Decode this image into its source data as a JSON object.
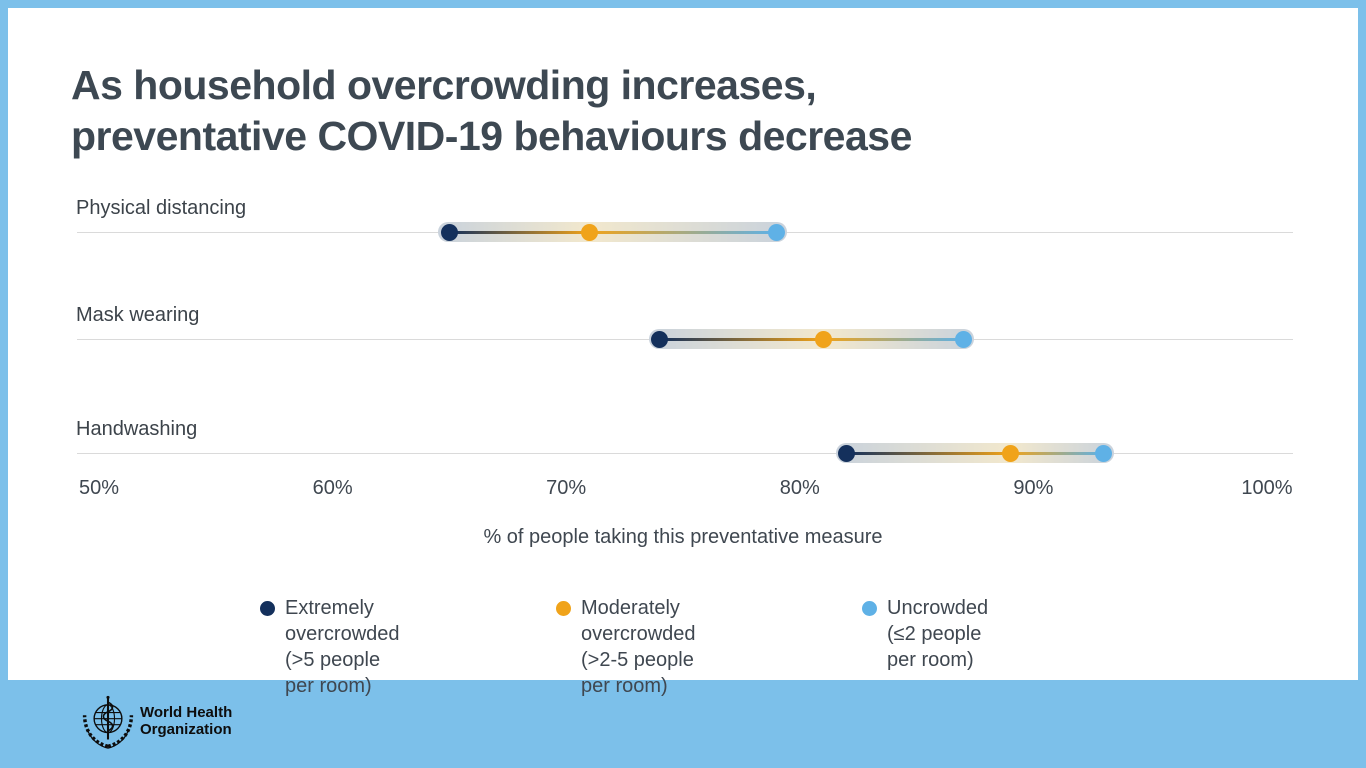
{
  "title": {
    "line1": "As household overcrowding increases,",
    "line2": "preventative COVID-19 behaviours decrease"
  },
  "chart_data": {
    "type": "scatter",
    "subtype": "dot-range-plot",
    "categories": [
      "Physical distancing",
      "Mask wearing",
      "Handwashing"
    ],
    "series": [
      {
        "name": "Extremely overcrowded (>5 people per room)",
        "color": "#14305c",
        "values": [
          65,
          74,
          82
        ]
      },
      {
        "name": "Moderately overcrowded (>2-5 people per room)",
        "color": "#f0a31a",
        "values": [
          71,
          81,
          89
        ]
      },
      {
        "name": "Uncrowded (≤2 people per room)",
        "color": "#5fb1e6",
        "values": [
          79,
          87,
          93
        ]
      }
    ],
    "xlabel": "% of people taking this preventative measure",
    "xlim": [
      50,
      100
    ],
    "xticks": [
      50,
      60,
      70,
      80,
      90,
      100
    ],
    "grid": "one horizontal line per category row",
    "legend_position": "bottom"
  },
  "axis": {
    "ticks": [
      "50%",
      "60%",
      "70%",
      "80%",
      "90%",
      "100%"
    ],
    "label": "% of people taking this preventative measure"
  },
  "legend": {
    "items": [
      {
        "label": "Extremely overcrowded",
        "sublabel": "(>5 people per room)",
        "color": "#14305c"
      },
      {
        "label": "Moderately overcrowded",
        "sublabel": "(>2-5 people per room)",
        "color": "#f0a31a"
      },
      {
        "label": "Uncrowded",
        "sublabel": "(≤2 people per room)",
        "color": "#5fb1e6"
      }
    ]
  },
  "footer": {
    "org_line1": "World Health",
    "org_line2": "Organization",
    "logo_icon": "who-emblem-icon"
  },
  "colors": {
    "frame_blue": "#7cc0ea",
    "panel_white": "#ffffff",
    "title_text": "#3d4852",
    "body_text": "#3f4750",
    "gridline": "#dadada",
    "band_slate": "#c9d2dc",
    "band_cream": "#f2e8cd",
    "navy": "#14305c",
    "orange": "#f0a31a",
    "light_blue": "#5fb1e6"
  }
}
